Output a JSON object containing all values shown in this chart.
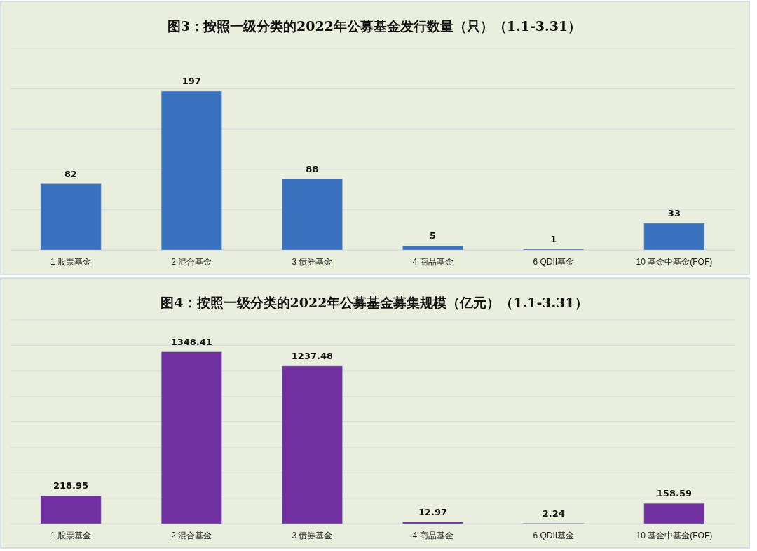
{
  "chart_data": [
    {
      "type": "bar",
      "title": "图3：按照一级分类的2022年公募基金发行数量（只）（1.1-3.31）",
      "categories": [
        "1 股票基金",
        "2 混合基金",
        "3 债券基金",
        "4 商品基金",
        "6 QDII基金",
        "10 基金中基金(FOF)"
      ],
      "values": [
        82,
        197,
        88,
        5,
        1,
        33
      ],
      "color": "#3a72bd",
      "data_labels": true,
      "grid": "y",
      "tick_labels": "x",
      "ylim": [
        0,
        250
      ],
      "yticks": [
        {
          "value": 0,
          "label": null
        },
        {
          "value": 50,
          "label": null
        },
        {
          "value": 100,
          "label": null
        },
        {
          "value": 150,
          "label": null
        },
        {
          "value": 200,
          "label": null
        },
        {
          "value": 250,
          "label": null
        }
      ]
    },
    {
      "type": "bar",
      "title": "图4：按照一级分类的2022年公募基金募集规模（亿元）（1.1-3.31）",
      "categories": [
        "1 股票基金",
        "2 混合基金",
        "3 债券基金",
        "4 商品基金",
        "6 QDII基金",
        "10 基金中基金(FOF)"
      ],
      "values": [
        218.95,
        1348.41,
        1237.48,
        12.97,
        2.24,
        158.59
      ],
      "color": "#70309f",
      "data_labels": true,
      "grid": "y",
      "tick_labels": "x",
      "ylim": [
        0,
        1600
      ],
      "yticks": [
        {
          "value": 0,
          "label": null
        },
        {
          "value": 200,
          "label": null
        },
        {
          "value": 400,
          "label": null
        },
        {
          "value": 600,
          "label": null
        },
        {
          "value": 800,
          "label": null
        },
        {
          "value": 1000,
          "label": null
        },
        {
          "value": 1200,
          "label": null
        },
        {
          "value": 1400,
          "label": null
        },
        {
          "value": 1600,
          "label": null
        }
      ]
    }
  ]
}
